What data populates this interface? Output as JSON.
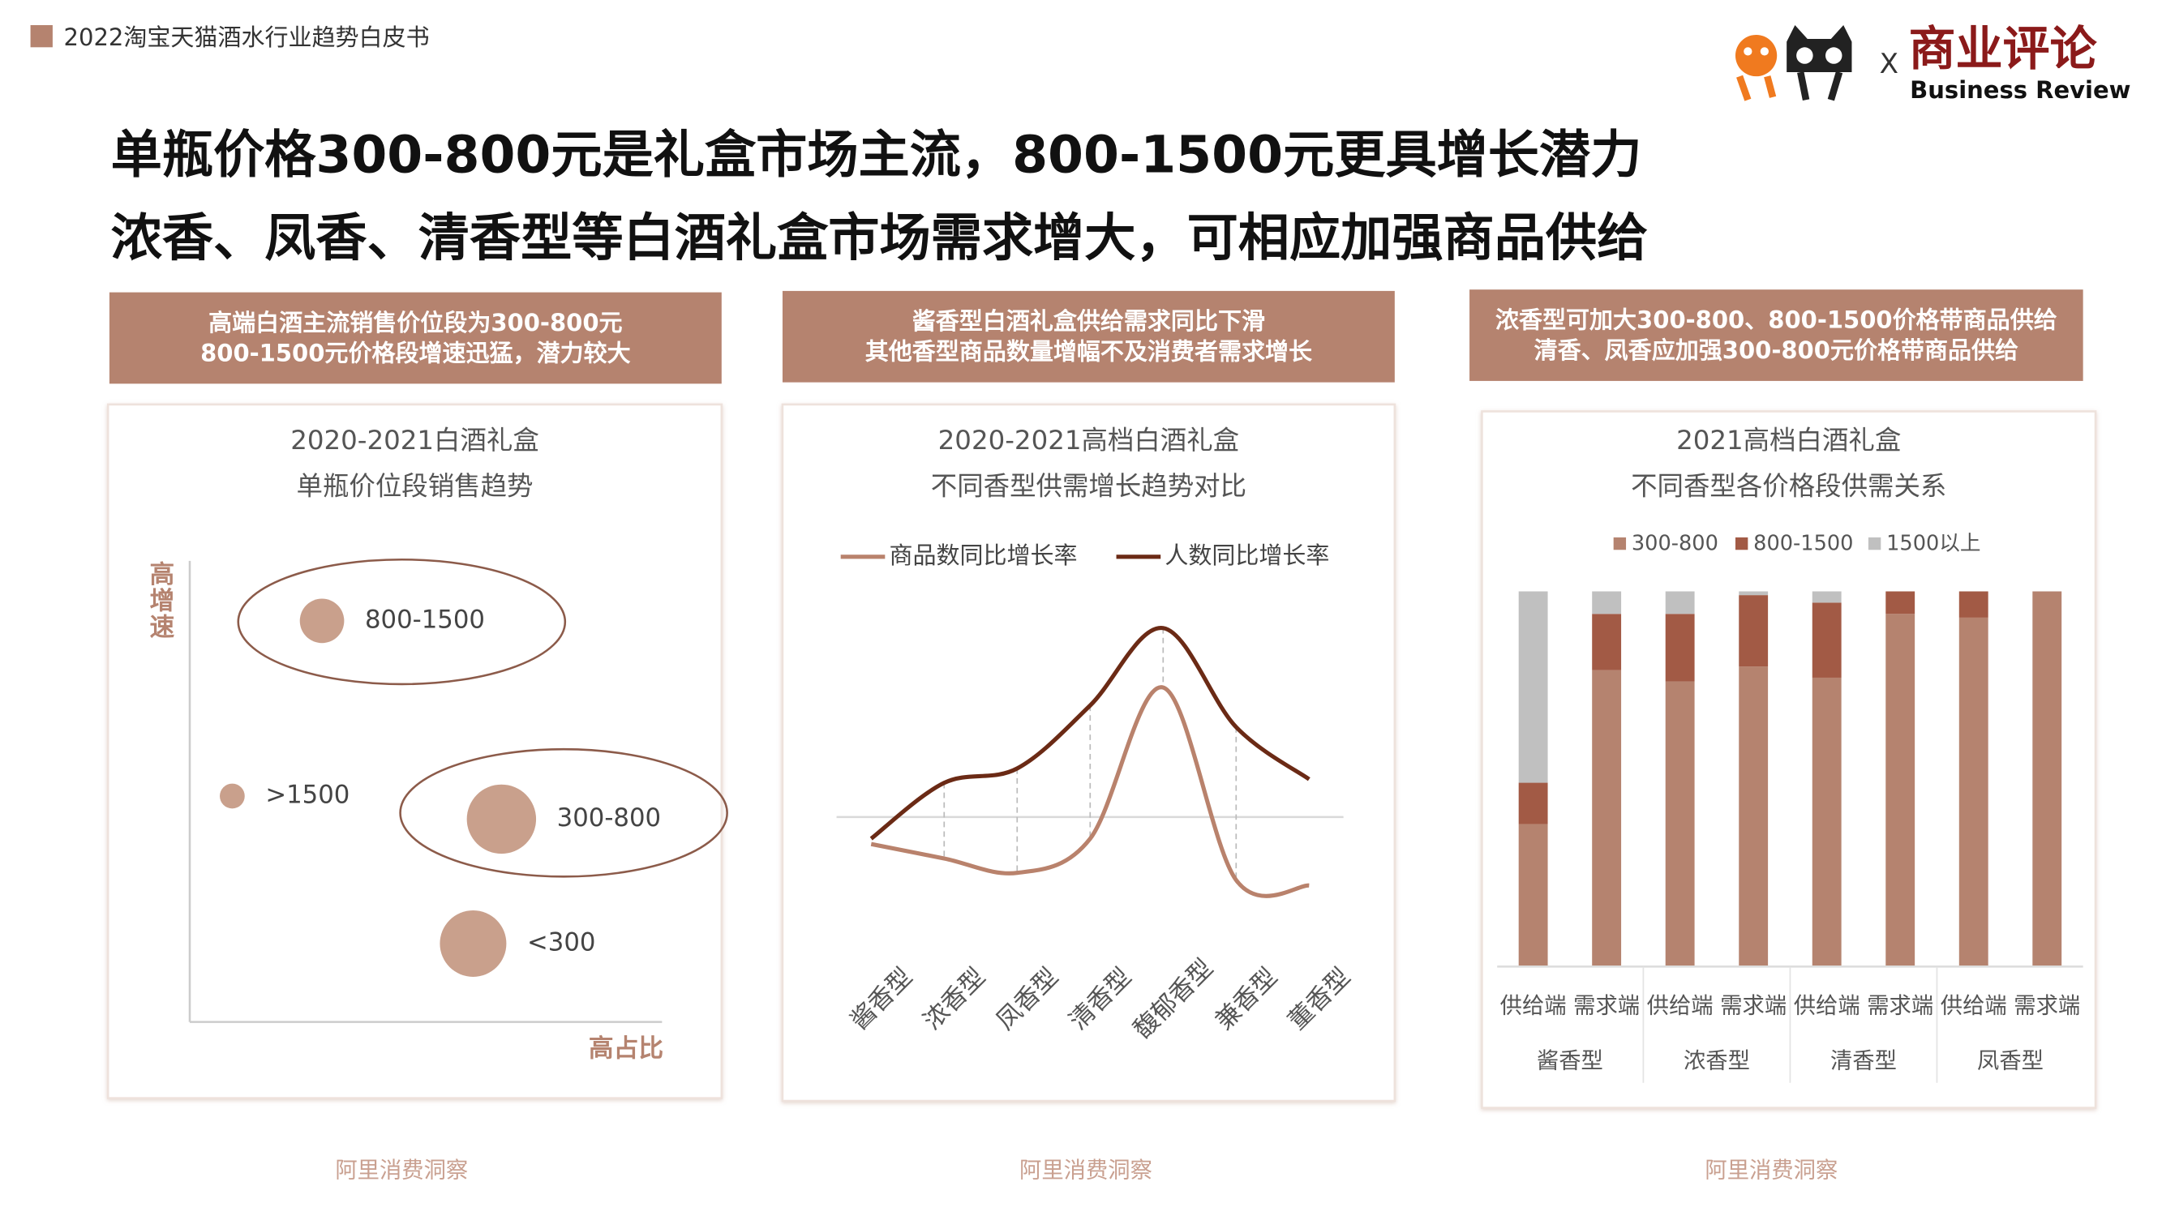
{
  "header": {
    "report": "2022淘宝天猫酒水行业趋势白皮书",
    "logo_x": "X",
    "logo_cn": "商业评论",
    "logo_en": "Business Review"
  },
  "headline": [
    "单瓶价格300-800元是礼盒市场主流，800-1500元更具增长潜力",
    "浓香、凤香、清香型等白酒礼盒市场需求增大，可相应加强商品供给"
  ],
  "panels": [
    {
      "banner": [
        "高端白酒主流销售价位段为300-800元",
        "800-1500元价格段增速迅猛，潜力较大"
      ],
      "source": "阿里消费洞察"
    },
    {
      "banner": [
        "酱香型白酒礼盒供给需求同比下滑",
        "其他香型商品数量增幅不及消费者需求增长"
      ],
      "source": "阿里消费洞察"
    },
    {
      "banner": [
        "浓香型可加大300-800、800-1500价格带商品供给",
        "清香、凤香应加强300-800元价格带商品供给"
      ],
      "source": "阿里消费洞察"
    }
  ],
  "chart_data": [
    {
      "type": "bubble",
      "title": "2020-2021白酒礼盒",
      "subtitle": "单瓶价位段销售趋势",
      "x_label": "高占比",
      "y_label": "高增速",
      "labels": [
        "800-1500",
        ">1500",
        "300-800",
        "<300"
      ],
      "x": [
        2.8,
        0.9,
        6.6,
        6.0
      ],
      "y": [
        8.7,
        4.9,
        4.4,
        1.7
      ],
      "sizes": [
        3.2,
        1.8,
        5.0,
        4.8
      ],
      "color": "#c9a08c",
      "xlim": [
        0,
        10
      ],
      "ylim": [
        0,
        10
      ]
    },
    {
      "type": "line",
      "title": "2020-2021高档白酒礼盒",
      "subtitle": "不同香型供需增长趋势对比",
      "categories": [
        "酱香型",
        "浓香型",
        "凤香型",
        "清香型",
        "馥郁香型",
        "兼香型",
        "董香型"
      ],
      "series": [
        {
          "name": "商品数同比增长率",
          "color": "#b9826c",
          "values": [
            -15,
            -23,
            -31,
            -12,
            72,
            -35,
            -38
          ]
        },
        {
          "name": "人数同比增长率",
          "color": "#6b2a15",
          "values": [
            -12,
            19,
            27,
            62,
            105,
            50,
            21
          ]
        }
      ],
      "ylim": [
        -50,
        150
      ]
    },
    {
      "type": "stacked_bar",
      "title": "2021高档白酒礼盒",
      "subtitle": "不同香型各价格段供需关系",
      "categories": [
        "供给端",
        "需求端",
        "供给端",
        "需求端",
        "供给端",
        "需求端",
        "供给端",
        "需求端"
      ],
      "groups": [
        "酱香型",
        "浓香型",
        "清香型",
        "凤香型"
      ],
      "series": [
        {
          "name": "300-800",
          "color": "#b5836f",
          "values": [
            38,
            79,
            76,
            80,
            77,
            94,
            93,
            100
          ]
        },
        {
          "name": "800-1500",
          "color": "#a25a45",
          "values": [
            11,
            15,
            18,
            19,
            20,
            6,
            7,
            0
          ]
        },
        {
          "name": "1500以上",
          "color": "#c0c0c0",
          "values": [
            51,
            6,
            6,
            1,
            3,
            0,
            0,
            0
          ]
        }
      ],
      "ylim": [
        0,
        100
      ]
    }
  ]
}
